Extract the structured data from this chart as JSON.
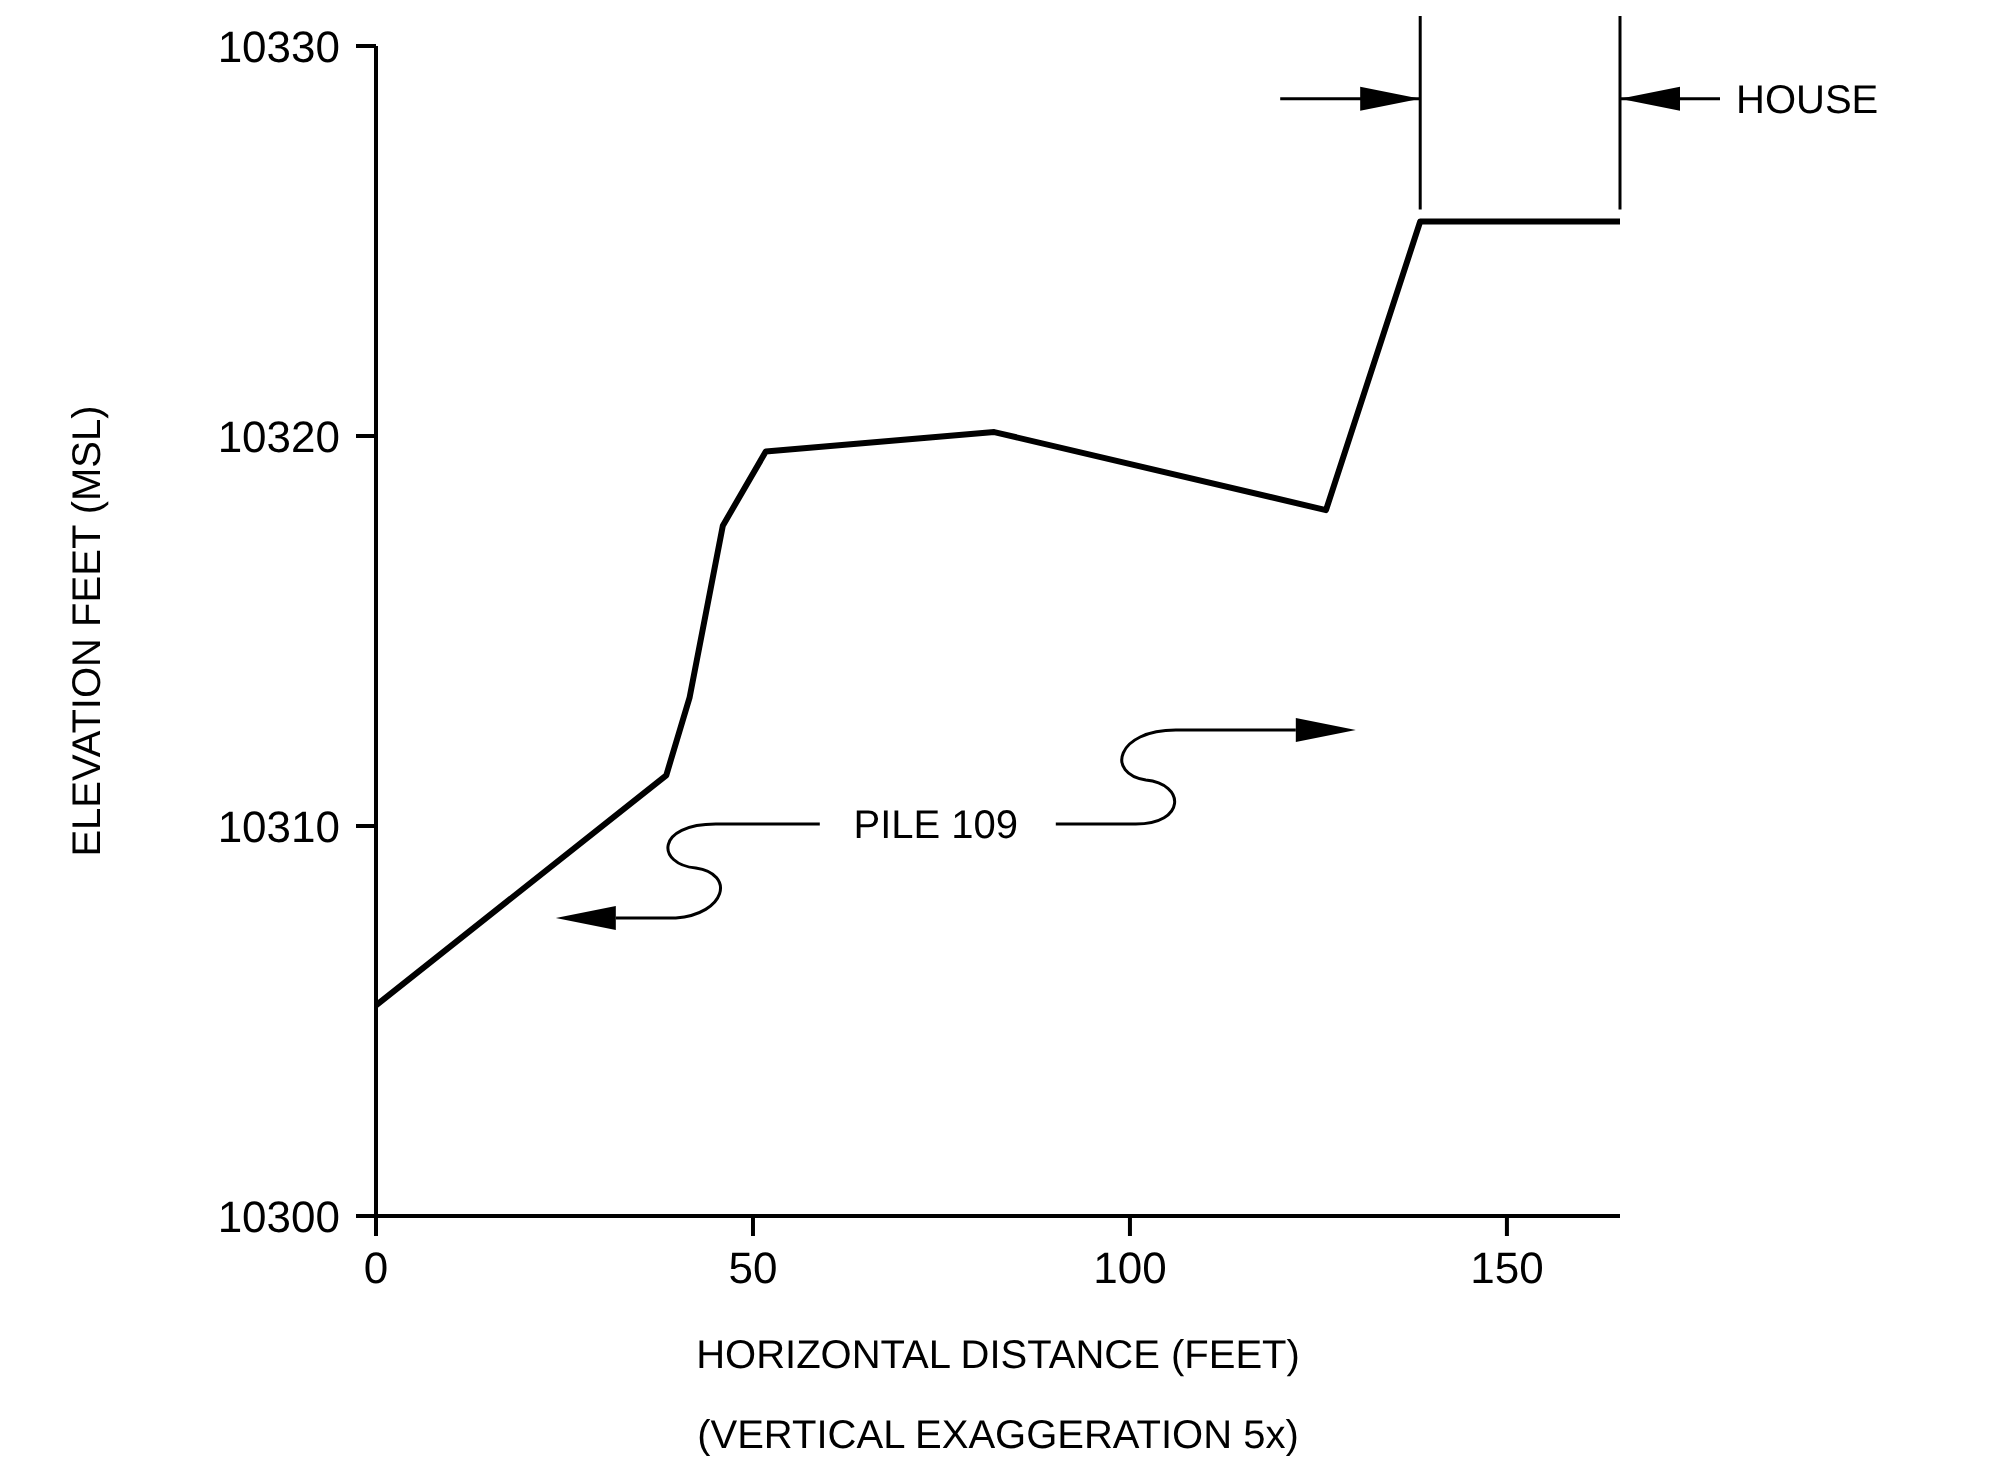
{
  "chart_data": {
    "type": "line",
    "xlabel": "HORIZONTAL DISTANCE (FEET)",
    "ylabel": "ELEVATION FEET (MSL)",
    "x": [
      0,
      38.5,
      41.6,
      46,
      51.7,
      82,
      126,
      138.5,
      165
    ],
    "values": [
      10305.4,
      10311.3,
      10313.3,
      10317.7,
      10319.6,
      10320.1,
      10318.1,
      10325.5,
      10325.5
    ],
    "color": "#000000",
    "marker": "none",
    "line_style": "solid",
    "grid": false,
    "legend": false,
    "xlim": [
      0,
      165
    ],
    "xticks": [
      0,
      50,
      100,
      150
    ],
    "ylim": [
      10300,
      10330
    ],
    "yticks": [
      10300,
      10310,
      10320,
      10330
    ],
    "annotations": [
      "HOUSE",
      "PILE 109",
      "(VERTICAL EXAGGERATION 5x)"
    ]
  }
}
